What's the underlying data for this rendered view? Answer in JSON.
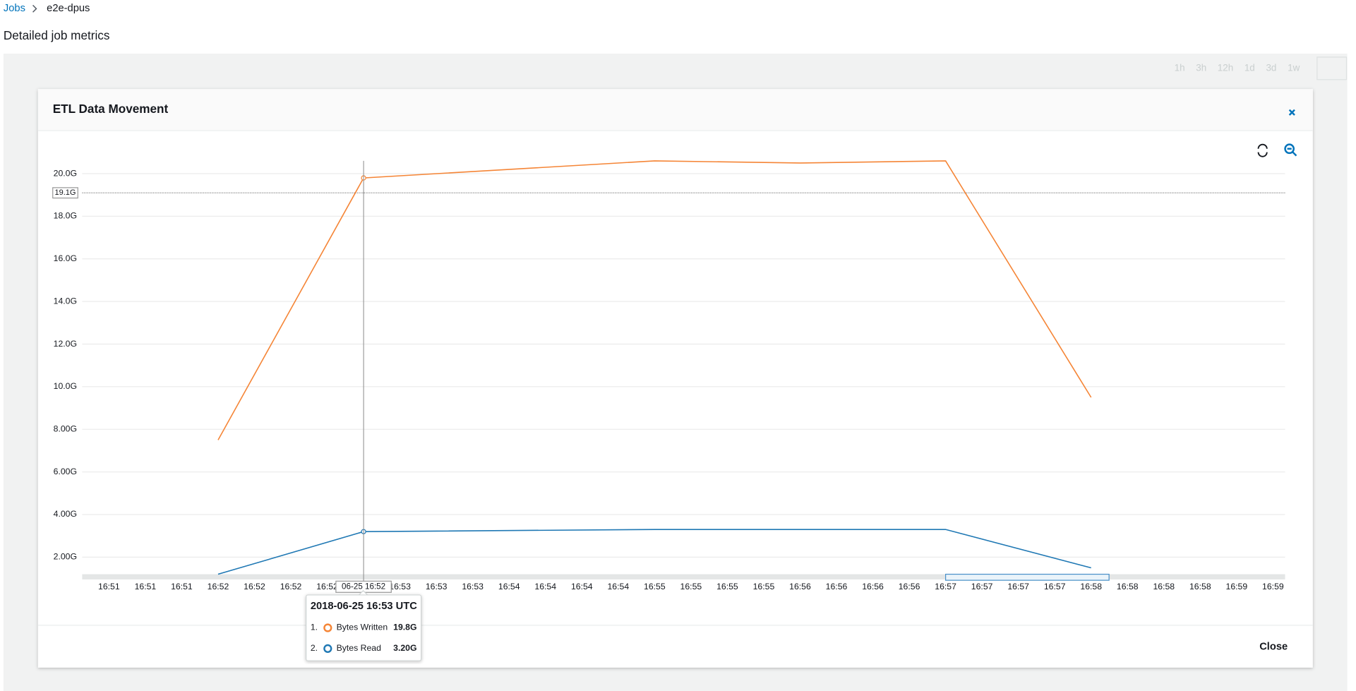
{
  "breadcrumb": {
    "root": "Jobs",
    "current": "e2e-dpus"
  },
  "page_title": "Detailed job metrics",
  "time_ranges": [
    "1h",
    "3h",
    "12h",
    "1d",
    "3d",
    "1w"
  ],
  "modal": {
    "title": "ETL Data Movement",
    "close_button": "Close"
  },
  "chart_data": {
    "type": "line",
    "categories": [
      "16:51",
      "16:51",
      "16:51",
      "16:52",
      "16:52",
      "16:52",
      "16:52",
      null,
      "16:53",
      "16:53",
      "16:53",
      "16:54",
      "16:54",
      "16:54",
      "16:54",
      "16:55",
      "16:55",
      "16:55",
      "16:55",
      "16:56",
      "16:56",
      "16:56",
      "16:56",
      "16:57",
      "16:57",
      "16:57",
      "16:57",
      "16:58",
      "16:58",
      "16:58",
      "16:58",
      "16:59",
      "16:59"
    ],
    "series": [
      {
        "name": "Bytes Written",
        "color": "#f58536",
        "values": [
          null,
          null,
          null,
          7.5,
          null,
          null,
          null,
          19.8,
          null,
          null,
          null,
          null,
          null,
          null,
          null,
          20.6,
          null,
          null,
          null,
          20.5,
          null,
          null,
          null,
          20.6,
          null,
          null,
          null,
          9.5,
          null,
          null,
          null,
          null,
          null
        ]
      },
      {
        "name": "Bytes Read",
        "color": "#1f78b4",
        "values": [
          null,
          null,
          null,
          1.2,
          null,
          null,
          null,
          3.2,
          null,
          null,
          null,
          null,
          null,
          null,
          null,
          3.3,
          null,
          null,
          null,
          3.3,
          null,
          null,
          null,
          3.3,
          null,
          null,
          null,
          1.5,
          null,
          null,
          null,
          null,
          null
        ]
      }
    ],
    "ylim": [
      1.2,
      20.6
    ],
    "yticks": [
      {
        "value": 2,
        "label": "2.00G"
      },
      {
        "value": 4,
        "label": "4.00G"
      },
      {
        "value": 6,
        "label": "6.00G"
      },
      {
        "value": 8,
        "label": "8.00G"
      },
      {
        "value": 10,
        "label": "10.0G"
      },
      {
        "value": 12,
        "label": "12.0G"
      },
      {
        "value": 14,
        "label": "14.0G"
      },
      {
        "value": 16,
        "label": "16.0G"
      },
      {
        "value": 18,
        "label": "18.0G"
      },
      {
        "value": 20,
        "label": "20.0G"
      }
    ],
    "grid": true,
    "crosshair": {
      "x_label": "06-25 16:52",
      "y": {
        "value": 19.1,
        "label": "19.1G"
      }
    }
  },
  "tooltip": {
    "title": "2018-06-25 16:53 UTC",
    "rows": [
      {
        "number": "1.",
        "value": "19.8G"
      },
      {
        "number": "2.",
        "value": "3.20G"
      }
    ]
  }
}
